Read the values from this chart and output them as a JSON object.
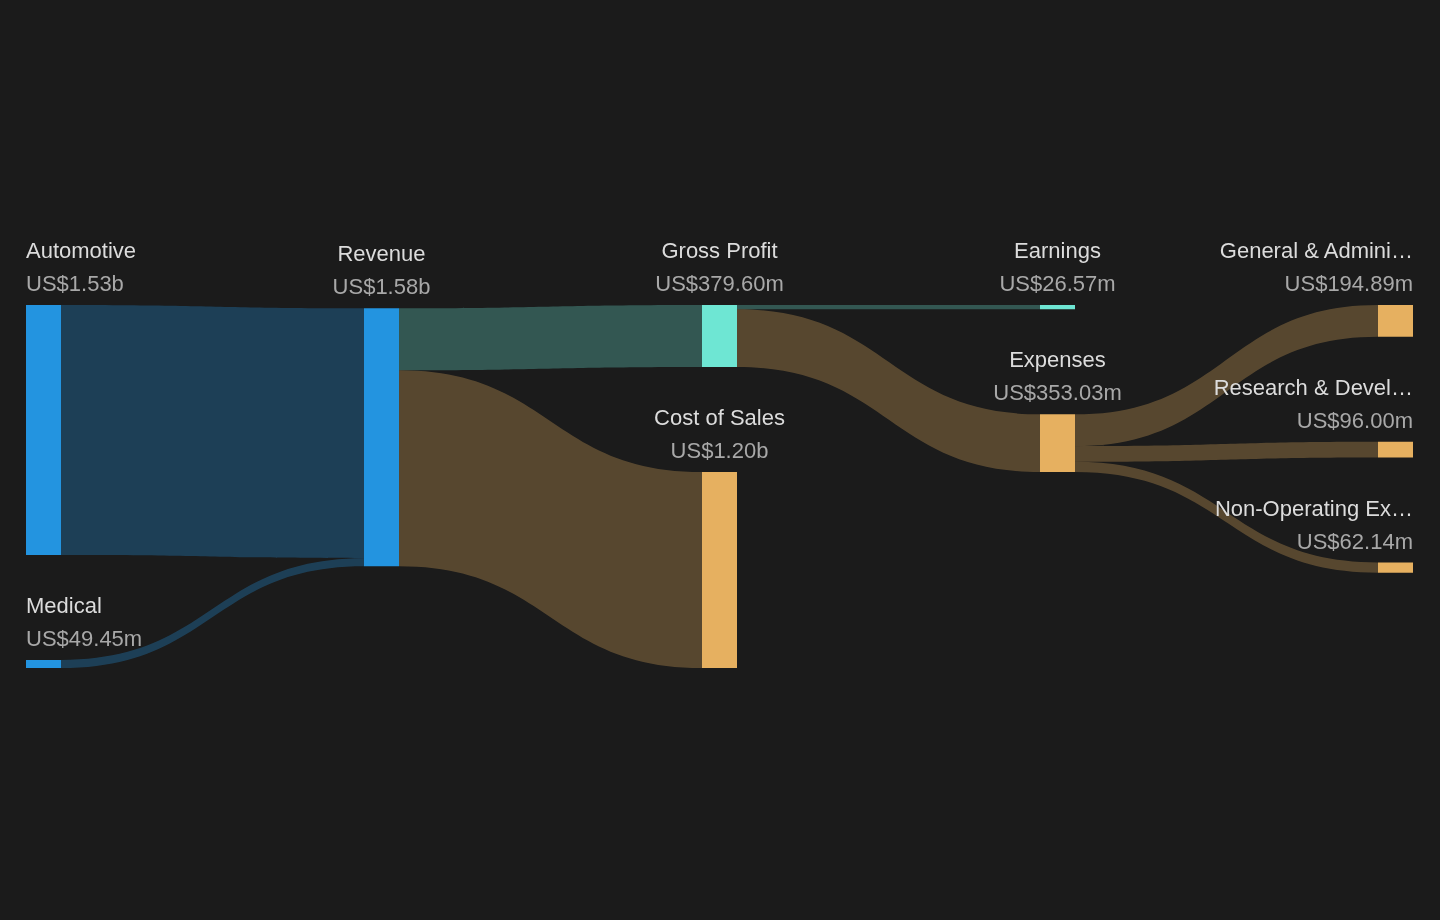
{
  "chart_data": {
    "type": "other",
    "categories": [
      "Automotive",
      "Medical",
      "Revenue",
      "Gross Profit",
      "Cost of Sales",
      "Earnings",
      "Expenses",
      "General & Admini…",
      "Research & Devel…",
      "Non-Operating Ex…"
    ],
    "values": [
      1530000000,
      49450000,
      1580000000,
      379600000,
      1200000000,
      26570000,
      353030000,
      194890000,
      96000000,
      62140000
    ],
    "value_labels": [
      "US$1.53b",
      "US$49.45m",
      "US$1.58b",
      "US$379.60m",
      "US$1.20b",
      "US$26.57m",
      "US$353.03m",
      "US$194.89m",
      "US$96.00m",
      "US$62.14m"
    ],
    "colors": [
      "#2394e0",
      "#2394e0",
      "#2394e0",
      "#6ee6d3",
      "#e6b060",
      "#6ee6d3",
      "#e6b060",
      "#e6b060",
      "#e6b060",
      "#e6b060"
    ]
  }
}
